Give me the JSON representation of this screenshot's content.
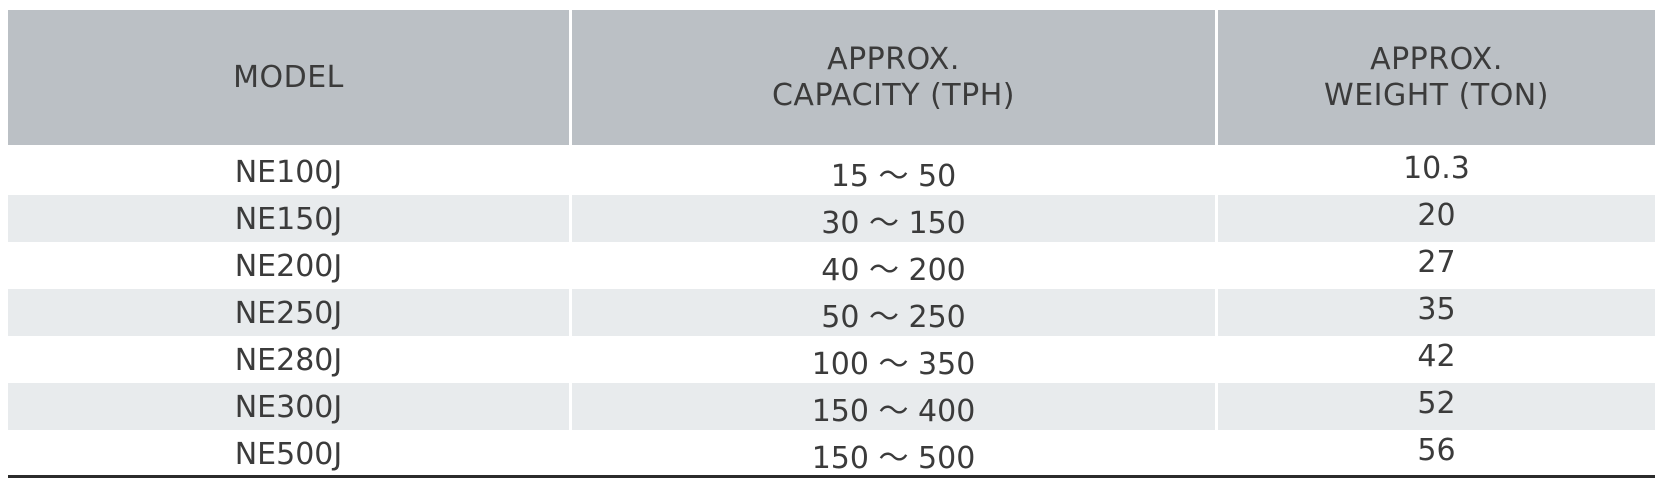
{
  "table": {
    "headers": {
      "model": "MODEL",
      "capacity": [
        "APPROX.",
        "CAPACITY (TPH)"
      ],
      "weight": [
        "APPROX.",
        "WEIGHT (TON)"
      ]
    },
    "rows": [
      {
        "model": "NE100J",
        "capacity": "15 〜 50",
        "weight": "10.3"
      },
      {
        "model": "NE150J",
        "capacity": "30 〜 150",
        "weight": "20"
      },
      {
        "model": "NE200J",
        "capacity": "40 〜 200",
        "weight": "27"
      },
      {
        "model": "NE250J",
        "capacity": "50 〜 250",
        "weight": "35"
      },
      {
        "model": "NE280J",
        "capacity": "100 〜 350",
        "weight": "42"
      },
      {
        "model": "NE300J",
        "capacity": "150 〜 400",
        "weight": "52"
      },
      {
        "model": "NE500J",
        "capacity": "150 〜 500",
        "weight": "56"
      }
    ]
  },
  "colors": {
    "header_bg": "#bbc0c5",
    "stripe_bg": "#e8ebed",
    "text": "#3b3b3b",
    "rule": "#2b2b2b"
  }
}
